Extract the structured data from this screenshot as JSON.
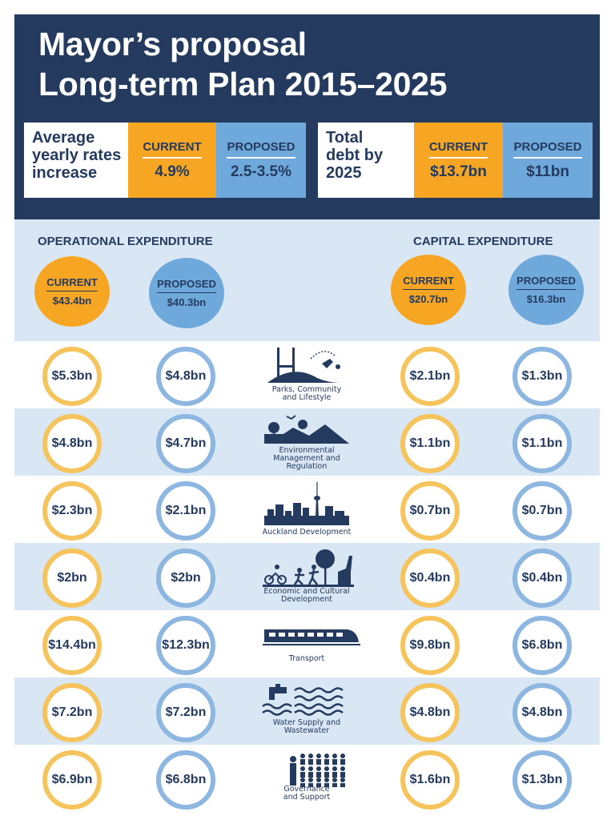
{
  "title": {
    "line1": "Mayor’s proposal",
    "line2": "Long-term Plan 2015–2025"
  },
  "rates": {
    "label_line1": "Average",
    "label_line2": "yearly rates",
    "label_line3": "increase",
    "current_label": "CURRENT",
    "current_value": "4.9%",
    "proposed_label": "PROPOSED",
    "proposed_value": "2.5-3.5%"
  },
  "debt": {
    "label_line1": "Total",
    "label_line2": "debt by",
    "label_line3": "2025",
    "current_label": "CURRENT",
    "current_value": "$13.7bn",
    "proposed_label": "PROPOSED",
    "proposed_value": "$11bn"
  },
  "operational": {
    "heading": "OPERATIONAL EXPENDITURE",
    "current_label": "CURRENT",
    "current_value": "$43.4bn",
    "proposed_label": "PROPOSED",
    "proposed_value": "$40.3bn"
  },
  "capital": {
    "heading": "CAPITAL EXPENDITURE",
    "current_label": "CURRENT",
    "current_value": "$20.7bn",
    "proposed_label": "PROPOSED",
    "proposed_value": "$16.3bn"
  },
  "colors": {
    "navy": "#243a5e",
    "orange": "#f6a623",
    "blue": "#6fa9db",
    "band": "#d9e6f3"
  },
  "rows": [
    {
      "icon": "parks-icon",
      "name_lines": [
        "Parks, Community",
        "and Lifestyle"
      ],
      "op_current": "$5.3bn",
      "op_proposed": "$4.8bn",
      "cap_current": "$2.1bn",
      "cap_proposed": "$1.3bn"
    },
    {
      "icon": "environment-icon",
      "name_lines": [
        "Environmental",
        "Management and",
        "Regulation"
      ],
      "op_current": "$4.8bn",
      "op_proposed": "$4.7bn",
      "cap_current": "$1.1bn",
      "cap_proposed": "$1.1bn"
    },
    {
      "icon": "city-skyline-icon",
      "name_lines": [
        "Auckland Development"
      ],
      "op_current": "$2.3bn",
      "op_proposed": "$2.1bn",
      "cap_current": "$0.7bn",
      "cap_proposed": "$0.7bn"
    },
    {
      "icon": "culture-icon",
      "name_lines": [
        "Economic and Cultural",
        "Development"
      ],
      "op_current": "$2bn",
      "op_proposed": "$2bn",
      "cap_current": "$0.4bn",
      "cap_proposed": "$0.4bn"
    },
    {
      "icon": "train-icon",
      "name_lines": [
        "Transport"
      ],
      "op_current": "$14.4bn",
      "op_proposed": "$12.3bn",
      "cap_current": "$9.8bn",
      "cap_proposed": "$6.8bn"
    },
    {
      "icon": "water-tap-icon",
      "name_lines": [
        "Water Supply and",
        "Wastewater"
      ],
      "op_current": "$7.2bn",
      "op_proposed": "$7.2bn",
      "cap_current": "$4.8bn",
      "cap_proposed": "$4.8bn"
    },
    {
      "icon": "governance-icon",
      "name_lines": [
        "Governance",
        "and Support"
      ],
      "op_current": "$6.9bn",
      "op_proposed": "$6.8bn",
      "cap_current": "$1.6bn",
      "cap_proposed": "$1.3bn"
    }
  ]
}
